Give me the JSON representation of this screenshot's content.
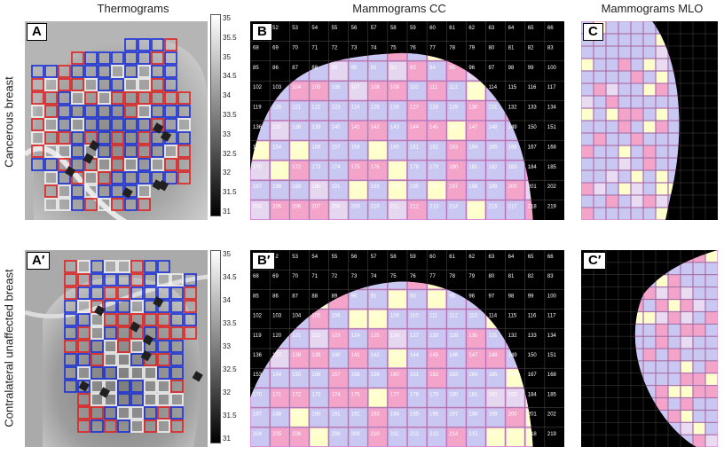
{
  "columns": {
    "thermograms": "Thermograms",
    "cc": "Mammograms CC",
    "mlo": "Mammograms MLO"
  },
  "rows": {
    "cancerous": "Cancerous breast",
    "contralateral": "Contralateral unaffected breast"
  },
  "panels": {
    "A": "A",
    "A2": "A′",
    "B": "B",
    "B2": "B′",
    "C": "C",
    "C2": "C′"
  },
  "colorbar_ticks": [
    "35",
    "34.5",
    "34",
    "33.5",
    "33",
    "32.5",
    "32",
    "31.5",
    "31"
  ],
  "colorbar_ticks_top": [
    "35",
    "35.5",
    "35",
    "34.5",
    "34",
    "33.5",
    "33",
    "32.5",
    "32",
    "31.5",
    "31"
  ],
  "colors": {
    "pink": "#f4a3c9",
    "yellow": "#ffffcc",
    "lavender": "#c9c8f2",
    "magenta": "#d98fd9",
    "thermo_red": "#e02020",
    "thermo_blue": "#1a2fd8",
    "thermo_white": "#f4f4f4"
  },
  "cc_grid_numbers": [
    [
      "51",
      "52",
      "53",
      "54",
      "55",
      "56",
      "57",
      "58",
      "59",
      "60",
      "61",
      "62",
      "63",
      "64",
      "65",
      "66"
    ],
    [
      "68",
      "69",
      "70",
      "71",
      "72",
      "73",
      "74",
      "75",
      "76",
      "77",
      "78",
      "79",
      "80",
      "81",
      "82",
      "83"
    ],
    [
      "85",
      "86",
      "87",
      "88",
      "89",
      "90",
      "91",
      "92",
      "93",
      "94",
      "95",
      "96",
      "97",
      "98",
      "99",
      "100"
    ],
    [
      "102",
      "103",
      "104",
      "105",
      "106",
      "107",
      "108",
      "109",
      "110",
      "111",
      "112",
      "113",
      "114",
      "115",
      "116",
      "117"
    ],
    [
      "119",
      "120",
      "121",
      "122",
      "123",
      "124",
      "125",
      "126",
      "127",
      "128",
      "129",
      "130",
      "131",
      "132",
      "133",
      "134"
    ],
    [
      "136",
      "137",
      "138",
      "139",
      "140",
      "141",
      "142",
      "143",
      "144",
      "145",
      "146",
      "147",
      "148",
      "149",
      "150",
      "151"
    ],
    [
      "153",
      "154",
      "155",
      "156",
      "157",
      "158",
      "159",
      "160",
      "161",
      "162",
      "163",
      "164",
      "165",
      "166",
      "167",
      "168"
    ],
    [
      "170",
      "171",
      "172",
      "173",
      "174",
      "175",
      "176",
      "177",
      "178",
      "179",
      "180",
      "181",
      "182",
      "183",
      "184",
      "185"
    ],
    [
      "187",
      "188",
      "189",
      "190",
      "191",
      "192",
      "193",
      "194",
      "195",
      "196",
      "197",
      "198",
      "199",
      "200",
      "201",
      "202"
    ],
    [
      "204",
      "205",
      "206",
      "207",
      "208",
      "209",
      "210",
      "211",
      "212",
      "213",
      "214",
      "215",
      "216",
      "217",
      "218",
      "219"
    ]
  ]
}
